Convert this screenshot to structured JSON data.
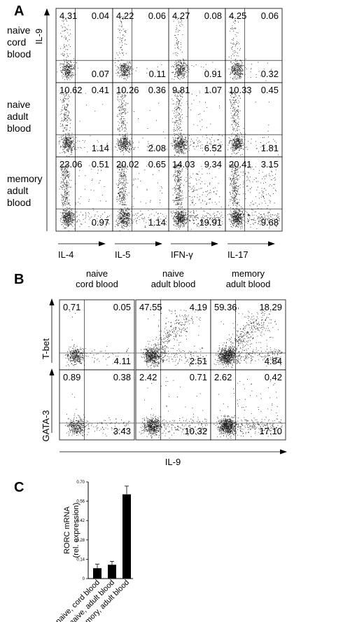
{
  "panelA": {
    "letter": "A",
    "y_label": "IL-9",
    "rows": [
      "naive cord blood",
      "naive adult blood",
      "memory adult blood"
    ],
    "row_lines": [
      [
        "naive",
        "cord",
        "blood"
      ],
      [
        "naive",
        "adult",
        "blood"
      ],
      [
        "memory",
        "adult",
        "blood"
      ]
    ],
    "cols": [
      "IL-4",
      "IL-5",
      "IFN-γ",
      "IL-17"
    ],
    "values": [
      [
        [
          "4.31",
          "0.04",
          "0.07"
        ],
        [
          "4.22",
          "0.06",
          "0.11"
        ],
        [
          "4.27",
          "0.08",
          "0.91"
        ],
        [
          "4.25",
          "0.06",
          "0.32"
        ]
      ],
      [
        [
          "10.62",
          "0.41",
          "1.14"
        ],
        [
          "10.26",
          "0.36",
          "2.08"
        ],
        [
          "9.81",
          "1.07",
          "6.52"
        ],
        [
          "10.33",
          "0.45",
          "1.81"
        ]
      ],
      [
        [
          "23.06",
          "0.51",
          "0.97"
        ],
        [
          "20.02",
          "0.65",
          "1.14"
        ],
        [
          "14.03",
          "9.34",
          "19.91"
        ],
        [
          "20.41",
          "3.15",
          "9.68"
        ]
      ]
    ]
  },
  "panelB": {
    "letter": "B",
    "cols": [
      "naive cord blood",
      "naive adult blood",
      "memory adult blood"
    ],
    "col_lines": [
      [
        "naive",
        "cord blood"
      ],
      [
        "naive",
        "adult blood"
      ],
      [
        "memory",
        "adult blood"
      ]
    ],
    "rows": [
      "T-bet",
      "GATA-3"
    ],
    "x_label": "IL-9",
    "values": [
      [
        [
          "0.71",
          "0.05",
          "4.11"
        ],
        [
          "47.55",
          "4.19",
          "2.51"
        ],
        [
          "59.36",
          "18.29",
          "4.84"
        ]
      ],
      [
        [
          "0.89",
          "0.38",
          "3.43"
        ],
        [
          "2.42",
          "0.71",
          "10.32"
        ],
        [
          "2.62",
          "0.42",
          "17.10"
        ]
      ]
    ]
  },
  "panelC": {
    "letter": "C",
    "ylabel_lines": [
      "RORC mRNA",
      "(rel. expression)"
    ],
    "chart_data": {
      "type": "bar",
      "categories": [
        "naive, cord blood",
        "naive, adult blood",
        "memory, adult blood"
      ],
      "values": [
        0.075,
        0.1,
        0.61
      ],
      "errors": [
        0.03,
        0.025,
        0.06
      ],
      "ylim": [
        0,
        0.7
      ],
      "yticks": [
        "0",
        "0.14",
        "0.28",
        "0.42",
        "0.56",
        "0.70"
      ]
    }
  }
}
